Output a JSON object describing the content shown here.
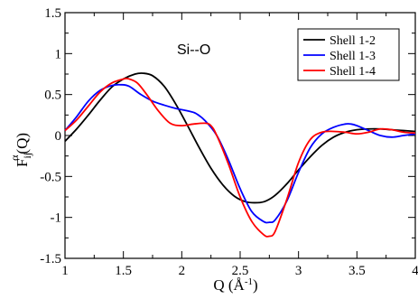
{
  "chart_data": {
    "type": "line",
    "title": "",
    "annotation": "Si--O",
    "xlabel": {
      "main": "Q (",
      "unit": "Å",
      "exponent": "-1",
      "close": ")"
    },
    "ylabel": {
      "base": "F",
      "sub": "ij",
      "sup": "α",
      "tail": "(Q)"
    },
    "xlim": [
      1,
      4
    ],
    "ylim": [
      -1.5,
      1.5
    ],
    "xticks": [
      1,
      1.5,
      2,
      2.5,
      3,
      3.5,
      4
    ],
    "xtick_labels": [
      "1",
      "1.5",
      "2",
      "2.5",
      "3",
      "3.5",
      "4"
    ],
    "yticks": [
      -1.5,
      -1,
      -0.5,
      0,
      0.5,
      1,
      1.5
    ],
    "ytick_labels": [
      "-1.5",
      "-1",
      "-0.5",
      "0",
      "0.5",
      "1",
      "1.5"
    ],
    "grid": false,
    "legend_position": "top-right",
    "series": [
      {
        "name": "Shell 1-2",
        "color": "#000000",
        "x": [
          1.0,
          1.1,
          1.2,
          1.3,
          1.4,
          1.5,
          1.6,
          1.67,
          1.75,
          1.85,
          1.95,
          2.05,
          2.15,
          2.25,
          2.35,
          2.45,
          2.55,
          2.65,
          2.72,
          2.8,
          2.9,
          3.0,
          3.1,
          3.2,
          3.3,
          3.4,
          3.5,
          3.6,
          3.7,
          3.8,
          3.9,
          4.0
        ],
        "y": [
          -0.07,
          0.08,
          0.25,
          0.43,
          0.59,
          0.69,
          0.75,
          0.76,
          0.73,
          0.6,
          0.38,
          0.12,
          -0.15,
          -0.4,
          -0.6,
          -0.74,
          -0.81,
          -0.82,
          -0.8,
          -0.73,
          -0.59,
          -0.42,
          -0.26,
          -0.12,
          -0.02,
          0.04,
          0.07,
          0.08,
          0.08,
          0.07,
          0.06,
          0.05
        ]
      },
      {
        "name": "Shell 1-3",
        "color": "#0000ff",
        "x": [
          1.0,
          1.1,
          1.2,
          1.3,
          1.4,
          1.48,
          1.55,
          1.65,
          1.75,
          1.85,
          1.95,
          2.05,
          2.12,
          2.2,
          2.3,
          2.4,
          2.5,
          2.6,
          2.7,
          2.75,
          2.8,
          2.9,
          3.0,
          3.1,
          3.2,
          3.3,
          3.4,
          3.45,
          3.5,
          3.6,
          3.7,
          3.8,
          3.9,
          4.0
        ],
        "y": [
          0.06,
          0.23,
          0.42,
          0.55,
          0.61,
          0.62,
          0.6,
          0.5,
          0.42,
          0.37,
          0.33,
          0.3,
          0.27,
          0.18,
          0.0,
          -0.3,
          -0.65,
          -0.93,
          -1.05,
          -1.06,
          -1.03,
          -0.8,
          -0.45,
          -0.15,
          0.02,
          0.1,
          0.14,
          0.14,
          0.12,
          0.06,
          0.0,
          -0.02,
          0.0,
          0.02
        ]
      },
      {
        "name": "Shell 1-4",
        "color": "#ff0000",
        "x": [
          1.0,
          1.1,
          1.2,
          1.3,
          1.4,
          1.5,
          1.55,
          1.62,
          1.7,
          1.8,
          1.9,
          2.0,
          2.1,
          2.2,
          2.25,
          2.3,
          2.4,
          2.5,
          2.6,
          2.7,
          2.75,
          2.8,
          2.9,
          3.0,
          3.1,
          3.2,
          3.3,
          3.4,
          3.5,
          3.6,
          3.7,
          3.8,
          3.9,
          4.0
        ],
        "y": [
          0.06,
          0.19,
          0.36,
          0.53,
          0.64,
          0.69,
          0.69,
          0.64,
          0.5,
          0.3,
          0.15,
          0.12,
          0.14,
          0.15,
          0.12,
          0.0,
          -0.35,
          -0.75,
          -1.05,
          -1.21,
          -1.23,
          -1.17,
          -0.78,
          -0.33,
          -0.05,
          0.04,
          0.05,
          0.04,
          0.02,
          0.04,
          0.08,
          0.07,
          0.04,
          0.03
        ]
      }
    ]
  }
}
